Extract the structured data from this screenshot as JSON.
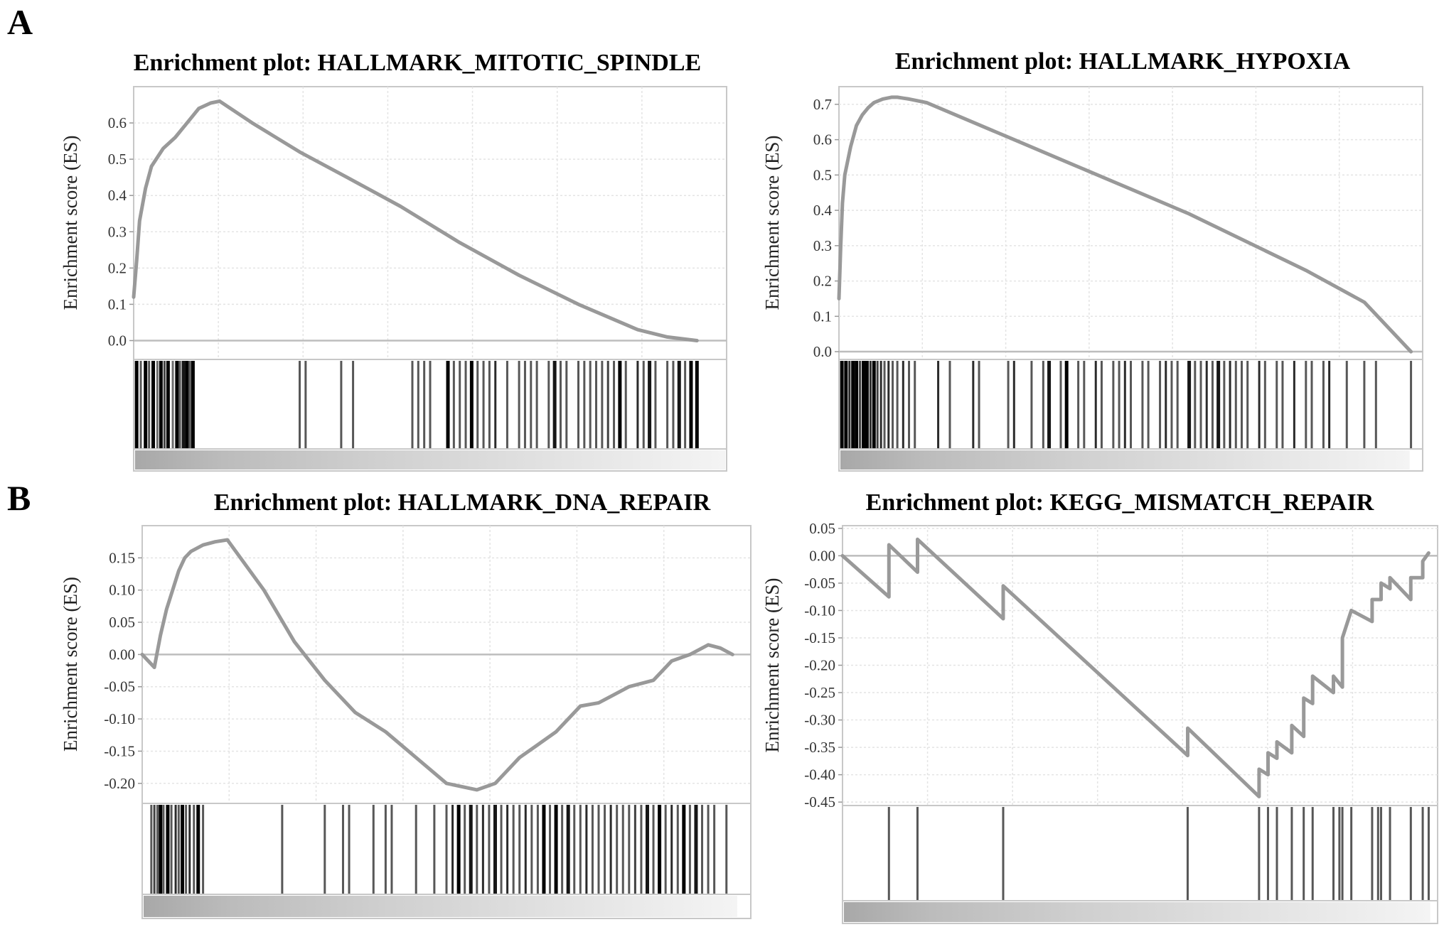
{
  "panel_labels": [
    "A",
    "B"
  ],
  "chart_data": [
    {
      "type": "line",
      "panel": "A",
      "title": "Enrichment plot: HALLMARK_MITOTIC_SPINDLE",
      "ylabel": "Enrichment score (ES)",
      "xlabel": "",
      "ylim": [
        -0.05,
        0.7
      ],
      "yticks": [
        "0.0",
        "0.1",
        "0.2",
        "0.3",
        "0.4",
        "0.5",
        "0.6"
      ],
      "ytick_values": [
        0.0,
        0.1,
        0.2,
        0.3,
        0.4,
        0.5,
        0.6
      ],
      "grid": true,
      "x_range": [
        0,
        1
      ],
      "line_color": "#999999",
      "series": [
        {
          "x": [
            0,
            0.005,
            0.01,
            0.02,
            0.03,
            0.05,
            0.07,
            0.09,
            0.11,
            0.13,
            0.145,
            0.2,
            0.28,
            0.36,
            0.45,
            0.55,
            0.65,
            0.75,
            0.85,
            0.9,
            0.95
          ],
          "y": [
            0.12,
            0.22,
            0.33,
            0.42,
            0.48,
            0.53,
            0.56,
            0.6,
            0.64,
            0.655,
            0.66,
            0.6,
            0.52,
            0.45,
            0.37,
            0.27,
            0.18,
            0.1,
            0.03,
            0.01,
            0.0
          ]
        }
      ],
      "hits": [
        0.005,
        0.012,
        0.02,
        0.026,
        0.033,
        0.04,
        0.046,
        0.052,
        0.058,
        0.066,
        0.073,
        0.078,
        0.084,
        0.09,
        0.095,
        0.1,
        0.28,
        0.29,
        0.35,
        0.37,
        0.47,
        0.48,
        0.49,
        0.5,
        0.53,
        0.54,
        0.55,
        0.56,
        0.57,
        0.58,
        0.59,
        0.6,
        0.61,
        0.63,
        0.65,
        0.66,
        0.67,
        0.68,
        0.7,
        0.71,
        0.72,
        0.73,
        0.75,
        0.76,
        0.77,
        0.78,
        0.79,
        0.8,
        0.81,
        0.82,
        0.83,
        0.85,
        0.86,
        0.87,
        0.88,
        0.9,
        0.91,
        0.92,
        0.93,
        0.94,
        0.95
      ],
      "hit_darkness": [
        1,
        0.6,
        1,
        0.6,
        1,
        0.5,
        1,
        0.7,
        1,
        0.5,
        1,
        0.6,
        0.9,
        1,
        0.6,
        1,
        0.6,
        0.6,
        0.6,
        0.6,
        0.6,
        0.6,
        0.6,
        0.6,
        1,
        0.6,
        0.6,
        0.6,
        1,
        0.6,
        0.6,
        0.6,
        0.8,
        0.6,
        0.6,
        0.6,
        0.6,
        0.6,
        0.6,
        0.9,
        0.6,
        0.6,
        0.6,
        0.6,
        0.6,
        0.6,
        0.6,
        0.7,
        0.6,
        1,
        0.6,
        0.8,
        0.6,
        0.9,
        0.6,
        0.6,
        0.6,
        0.9,
        0.6,
        1,
        1
      ],
      "hits_end": 0.95,
      "ranked_bar_end": 1.0
    },
    {
      "type": "line",
      "panel": "A",
      "title": "Enrichment plot: HALLMARK_HYPOXIA",
      "ylabel": "Enrichment score (ES)",
      "xlabel": "",
      "ylim": [
        -0.02,
        0.75
      ],
      "yticks": [
        "0.0",
        "0.1",
        "0.2",
        "0.3",
        "0.4",
        "0.5",
        "0.6",
        "0.7"
      ],
      "ytick_values": [
        0.0,
        0.1,
        0.2,
        0.3,
        0.4,
        0.5,
        0.6,
        0.7
      ],
      "grid": true,
      "x_range": [
        0,
        1
      ],
      "line_color": "#999999",
      "series": [
        {
          "x": [
            0,
            0.003,
            0.006,
            0.01,
            0.02,
            0.03,
            0.04,
            0.05,
            0.06,
            0.075,
            0.09,
            0.1,
            0.12,
            0.15,
            0.2,
            0.3,
            0.4,
            0.5,
            0.6,
            0.7,
            0.8,
            0.9,
            0.98
          ],
          "y": [
            0.15,
            0.3,
            0.42,
            0.5,
            0.58,
            0.64,
            0.67,
            0.69,
            0.705,
            0.715,
            0.72,
            0.72,
            0.715,
            0.705,
            0.67,
            0.6,
            0.53,
            0.46,
            0.39,
            0.31,
            0.23,
            0.14,
            0.0
          ]
        }
      ],
      "hits": [
        0.005,
        0.012,
        0.018,
        0.024,
        0.03,
        0.036,
        0.042,
        0.048,
        0.054,
        0.06,
        0.066,
        0.072,
        0.078,
        0.085,
        0.092,
        0.1,
        0.11,
        0.12,
        0.13,
        0.17,
        0.19,
        0.23,
        0.24,
        0.29,
        0.3,
        0.33,
        0.35,
        0.36,
        0.38,
        0.39,
        0.41,
        0.42,
        0.44,
        0.45,
        0.47,
        0.48,
        0.49,
        0.5,
        0.52,
        0.53,
        0.55,
        0.56,
        0.57,
        0.58,
        0.6,
        0.61,
        0.62,
        0.63,
        0.64,
        0.65,
        0.66,
        0.67,
        0.68,
        0.69,
        0.7,
        0.72,
        0.73,
        0.75,
        0.76,
        0.78,
        0.8,
        0.81,
        0.83,
        0.84,
        0.87,
        0.9,
        0.92,
        0.98
      ],
      "hit_darkness": [
        1,
        1,
        0.8,
        1,
        1,
        0.7,
        1,
        1,
        0.8,
        1,
        0.7,
        0.8,
        0.6,
        0.8,
        0.6,
        0.6,
        0.8,
        0.6,
        0.6,
        0.8,
        0.6,
        0.8,
        0.6,
        0.6,
        0.8,
        0.6,
        0.6,
        0.9,
        0.6,
        1,
        0.6,
        0.6,
        0.8,
        0.6,
        0.6,
        0.6,
        0.8,
        0.6,
        0.6,
        0.6,
        0.6,
        0.8,
        0.6,
        0.6,
        0.9,
        0.6,
        0.6,
        0.8,
        0.6,
        0.9,
        0.6,
        0.8,
        0.6,
        0.6,
        0.6,
        0.8,
        0.6,
        0.6,
        0.6,
        0.8,
        0.6,
        0.6,
        0.6,
        0.8,
        0.6,
        0.6,
        0.6,
        0.6
      ],
      "hits_end": 0.98,
      "ranked_bar_end": 0.98
    },
    {
      "type": "line",
      "panel": "B",
      "title": "Enrichment plot: HALLMARK_DNA_REPAIR",
      "ylabel": "Enrichment score (ES)",
      "xlabel": "",
      "ylim": [
        -0.23,
        0.2
      ],
      "yticks": [
        "0.15",
        "0.10",
        "0.05",
        "0.00",
        "-0.05",
        "-0.10",
        "-0.15",
        "-0.20"
      ],
      "ytick_values": [
        0.15,
        0.1,
        0.05,
        0.0,
        -0.05,
        -0.1,
        -0.15,
        -0.2
      ],
      "grid": true,
      "x_range": [
        0,
        1
      ],
      "line_color": "#999999",
      "series": [
        {
          "x": [
            0,
            0.02,
            0.03,
            0.04,
            0.05,
            0.06,
            0.07,
            0.08,
            0.1,
            0.12,
            0.14,
            0.2,
            0.25,
            0.3,
            0.35,
            0.4,
            0.45,
            0.5,
            0.55,
            0.58,
            0.6,
            0.62,
            0.65,
            0.68,
            0.7,
            0.72,
            0.75,
            0.78,
            0.8,
            0.84,
            0.87,
            0.9,
            0.93,
            0.95,
            0.97
          ],
          "y": [
            0.0,
            -0.02,
            0.03,
            0.07,
            0.1,
            0.13,
            0.15,
            0.16,
            0.17,
            0.175,
            0.178,
            0.1,
            0.02,
            -0.04,
            -0.09,
            -0.12,
            -0.16,
            -0.2,
            -0.21,
            -0.2,
            -0.18,
            -0.16,
            -0.14,
            -0.12,
            -0.1,
            -0.08,
            -0.075,
            -0.06,
            -0.05,
            -0.04,
            -0.01,
            0.0,
            0.015,
            0.01,
            0.0
          ]
        }
      ],
      "hits": [
        0.015,
        0.02,
        0.025,
        0.03,
        0.035,
        0.042,
        0.048,
        0.055,
        0.06,
        0.066,
        0.072,
        0.078,
        0.085,
        0.092,
        0.1,
        0.23,
        0.3,
        0.33,
        0.34,
        0.38,
        0.4,
        0.41,
        0.45,
        0.48,
        0.5,
        0.51,
        0.52,
        0.53,
        0.54,
        0.55,
        0.56,
        0.57,
        0.58,
        0.59,
        0.6,
        0.61,
        0.62,
        0.63,
        0.64,
        0.65,
        0.66,
        0.67,
        0.68,
        0.69,
        0.7,
        0.71,
        0.72,
        0.73,
        0.74,
        0.75,
        0.76,
        0.77,
        0.78,
        0.79,
        0.8,
        0.81,
        0.82,
        0.83,
        0.84,
        0.85,
        0.86,
        0.87,
        0.88,
        0.89,
        0.9,
        0.91,
        0.92,
        0.93,
        0.94,
        0.96
      ],
      "hit_darkness": [
        0.6,
        0.7,
        0.6,
        1,
        0.6,
        1,
        0.6,
        0.8,
        0.6,
        1,
        0.6,
        0.8,
        0.6,
        1,
        0.6,
        0.6,
        0.6,
        0.6,
        0.6,
        0.6,
        0.6,
        0.6,
        0.6,
        0.6,
        0.6,
        0.8,
        1,
        0.6,
        0.9,
        0.6,
        0.8,
        0.6,
        0.9,
        0.6,
        0.8,
        0.6,
        0.6,
        0.8,
        0.6,
        0.6,
        1,
        0.6,
        1,
        0.6,
        0.9,
        0.6,
        0.6,
        0.8,
        0.6,
        0.6,
        0.6,
        0.8,
        0.6,
        0.6,
        0.6,
        0.7,
        0.6,
        0.9,
        0.6,
        1,
        0.6,
        0.8,
        0.6,
        1,
        0.6,
        0.9,
        0.6,
        0.6,
        0.6,
        0.6
      ],
      "hits_end": 0.96,
      "ranked_bar_end": 0.98
    },
    {
      "type": "line",
      "panel": "B",
      "title": "Enrichment plot: KEGG_MISMATCH_REPAIR",
      "ylabel": "Enrichment score (ES)",
      "xlabel": "",
      "ylim": [
        -0.455,
        0.055
      ],
      "yticks": [
        "0.05",
        "0.00",
        "-0.05",
        "-0.10",
        "-0.15",
        "-0.20",
        "-0.25",
        "-0.30",
        "-0.35",
        "-0.40",
        "-0.45"
      ],
      "ytick_values": [
        0.05,
        0.0,
        -0.05,
        -0.1,
        -0.15,
        -0.2,
        -0.25,
        -0.3,
        -0.35,
        -0.4,
        -0.45
      ],
      "grid": true,
      "x_range": [
        0,
        1
      ],
      "line_color": "#999999",
      "series": [
        {
          "x": [
            0,
            0.078,
            0.078,
            0.126,
            0.126,
            0.27,
            0.27,
            0.58,
            0.58,
            0.7,
            0.7,
            0.715,
            0.715,
            0.73,
            0.73,
            0.755,
            0.755,
            0.775,
            0.775,
            0.79,
            0.79,
            0.825,
            0.825,
            0.84,
            0.84,
            0.855,
            0.855,
            0.89,
            0.89,
            0.905,
            0.905,
            0.92,
            0.92,
            0.955,
            0.955,
            0.975,
            0.975,
            0.985
          ],
          "y": [
            0.0,
            -0.075,
            0.02,
            -0.03,
            0.03,
            -0.115,
            -0.055,
            -0.365,
            -0.315,
            -0.44,
            -0.39,
            -0.4,
            -0.36,
            -0.37,
            -0.34,
            -0.36,
            -0.31,
            -0.33,
            -0.26,
            -0.27,
            -0.22,
            -0.25,
            -0.22,
            -0.24,
            -0.15,
            -0.1,
            -0.1,
            -0.12,
            -0.08,
            -0.08,
            -0.05,
            -0.06,
            -0.04,
            -0.08,
            -0.04,
            -0.04,
            -0.01,
            0.005
          ]
        }
      ],
      "hits": [
        0.078,
        0.126,
        0.27,
        0.58,
        0.7,
        0.715,
        0.73,
        0.755,
        0.775,
        0.79,
        0.825,
        0.835,
        0.84,
        0.855,
        0.89,
        0.9,
        0.905,
        0.92,
        0.955,
        0.975,
        0.985
      ],
      "hit_darkness": [
        0.6,
        0.6,
        0.6,
        0.6,
        0.6,
        0.6,
        0.6,
        0.6,
        0.6,
        0.6,
        0.6,
        0.6,
        0.6,
        0.6,
        0.6,
        0.6,
        0.6,
        0.6,
        0.6,
        0.6,
        0.6
      ],
      "hits_end": 0.99,
      "ranked_bar_end": 0.99
    }
  ]
}
